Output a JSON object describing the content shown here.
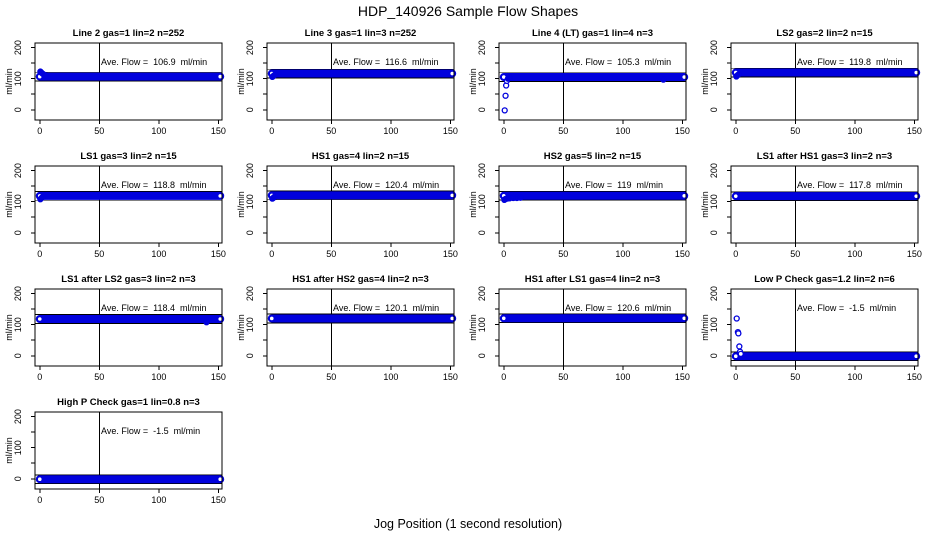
{
  "header": {
    "title": "HDP_140926  Sample Flow Shapes"
  },
  "footer": {
    "xlabel": "Jog Position (1 second resolution)"
  },
  "chart_data": {
    "type": "scatter",
    "title": "HDP_140926  Sample Flow Shapes",
    "xlabel": "Jog Position (1 second resolution)",
    "ylabel": "ml/min",
    "x_ticks": [
      0,
      50,
      100,
      150
    ],
    "y_ticks_minor": [
      0,
      50,
      100,
      150,
      200
    ],
    "y_tick_labels": [
      0,
      100,
      200
    ],
    "xlim": [
      -4,
      153
    ],
    "ylim": [
      -33,
      215
    ],
    "vline_x": 50,
    "band_x_range": [
      0,
      151.5
    ],
    "tolerance": 14,
    "grid": {
      "rows": 4,
      "cols": 4
    },
    "colors": {
      "points": "#0101dd",
      "axis": "#000000",
      "text": "#000000",
      "background": "#ffffff"
    },
    "plots": [
      {
        "title": "Line 2 gas=1 lin=2 n=252",
        "gas": "1",
        "lin": "2",
        "n": 252,
        "avg_flow": 106.9,
        "avg_label": "Ave. Flow =  106.9  ml/min",
        "points": [
          [
            0.5,
            123,
            "solid"
          ],
          [
            1,
            121,
            "solid"
          ],
          [
            1.5,
            119,
            "solid"
          ],
          [
            2.5,
            116,
            "solid"
          ],
          [
            3.5,
            113,
            "solid"
          ],
          [
            5,
            111,
            "solid"
          ]
        ]
      },
      {
        "title": "Line 3 gas=1 lin=3 n=252",
        "gas": "1",
        "lin": "3",
        "n": 252,
        "avg_flow": 116.6,
        "avg_label": "Ave. Flow =  116.6  ml/min",
        "points": [
          [
            0.5,
            106,
            "solid"
          ],
          [
            1,
            108,
            "solid"
          ],
          [
            2,
            111,
            "solid"
          ],
          [
            3,
            113,
            "solid"
          ]
        ]
      },
      {
        "title": "Line 4 (LT) gas=1 lin=4 n=3",
        "gas": "1",
        "lin": "4",
        "n": 3,
        "avg_flow": 105.3,
        "avg_label": "Ave. Flow =  105.3  ml/min",
        "points": [
          [
            0.8,
            -2,
            "open"
          ],
          [
            1.5,
            45,
            "open"
          ],
          [
            2,
            78,
            "open"
          ],
          [
            2.6,
            93,
            "open"
          ],
          [
            3.5,
            100,
            "solid"
          ],
          [
            5,
            103,
            "solid"
          ],
          [
            134,
            97,
            "solid"
          ]
        ]
      },
      {
        "title": "LS2 gas=2 lin=2 n=15",
        "gas": "2",
        "lin": "2",
        "n": 15,
        "avg_flow": 119.8,
        "avg_label": "Ave. Flow =  119.8  ml/min",
        "points": [
          [
            0.5,
            107,
            "solid"
          ],
          [
            1.2,
            110,
            "solid"
          ],
          [
            2,
            113,
            "solid"
          ]
        ]
      },
      {
        "title": "LS1 gas=3 lin=2 n=15",
        "gas": "3",
        "lin": "2",
        "n": 15,
        "avg_flow": 118.8,
        "avg_label": "Ave. Flow =  118.8  ml/min",
        "points": [
          [
            0.5,
            108,
            "solid"
          ],
          [
            1.2,
            111,
            "solid"
          ],
          [
            2,
            114,
            "solid"
          ]
        ]
      },
      {
        "title": "HS1 gas=4 lin=2 n=15",
        "gas": "4",
        "lin": "2",
        "n": 15,
        "avg_flow": 120.4,
        "avg_label": "Ave. Flow =  120.4  ml/min",
        "points": [
          [
            0.5,
            110,
            "solid"
          ],
          [
            1.2,
            112,
            "solid"
          ],
          [
            2,
            115,
            "solid"
          ]
        ]
      },
      {
        "title": "HS2 gas=5 lin=2 n=15",
        "gas": "5",
        "lin": "2",
        "n": 15,
        "avg_flow": 119,
        "avg_label": "Ave. Flow =  119  ml/min",
        "points": [
          [
            0.5,
            106,
            "solid"
          ],
          [
            1.5,
            109,
            "solid"
          ],
          [
            3,
            110,
            "solid"
          ],
          [
            5,
            111,
            "solid"
          ],
          [
            8,
            112,
            "solid"
          ],
          [
            11,
            112,
            "solid"
          ],
          [
            14,
            113,
            "solid"
          ]
        ]
      },
      {
        "title": "LS1 after HS1 gas=3 lin=2 n=3",
        "gas": "3",
        "lin": "2",
        "n": 3,
        "avg_flow": 117.8,
        "avg_label": "Ave. Flow =  117.8  ml/min",
        "points": []
      },
      {
        "title": "LS1 after LS2 gas=3 lin=2 n=3",
        "gas": "3",
        "lin": "2",
        "n": 3,
        "avg_flow": 118.4,
        "avg_label": "Ave. Flow =  118.4  ml/min",
        "points": [
          [
            140,
            108,
            "solid"
          ]
        ]
      },
      {
        "title": "HS1 after HS2 gas=4 lin=2 n=3",
        "gas": "4",
        "lin": "2",
        "n": 3,
        "avg_flow": 120.1,
        "avg_label": "Ave. Flow =  120.1  ml/min",
        "points": []
      },
      {
        "title": "HS1 after LS1 gas=4 lin=2 n=3",
        "gas": "4",
        "lin": "2",
        "n": 3,
        "avg_flow": 120.6,
        "avg_label": "Ave. Flow =  120.6  ml/min",
        "points": []
      },
      {
        "title": "Low P Check gas=1.2 lin=2 n=6",
        "gas": "1.2",
        "lin": "2",
        "n": 6,
        "avg_flow": -1.5,
        "avg_label": "Ave. Flow =  -1.5  ml/min",
        "points": [
          [
            0.8,
            120,
            "open"
          ],
          [
            1.8,
            76,
            "open"
          ],
          [
            2.2,
            72,
            "open"
          ],
          [
            3,
            30,
            "open"
          ],
          [
            3.6,
            13,
            "open"
          ],
          [
            4.2,
            6,
            "open"
          ]
        ]
      },
      {
        "title": "High P Check gas=1 lin=0.8 n=3",
        "gas": "1",
        "lin": "0.8",
        "n": 3,
        "avg_flow": -1.5,
        "avg_label": "Ave. Flow =  -1.5  ml/min",
        "points": []
      }
    ]
  }
}
